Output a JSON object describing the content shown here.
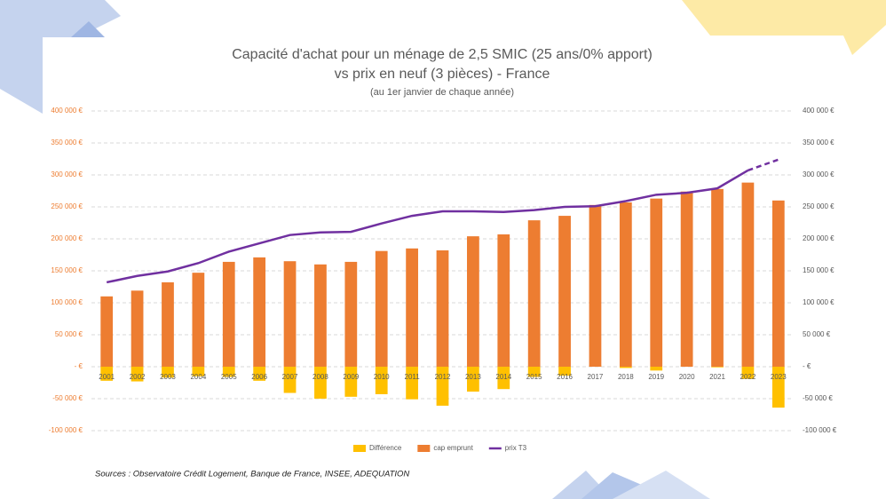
{
  "chart_data": {
    "type": "bar-line",
    "title": [
      "Capacité d'achat pour un ménage de 2,5 SMIC (25 ans/0% apport)",
      "vs prix en neuf (3 pièces) - France"
    ],
    "subtitle": "(au 1er janvier de chaque année)",
    "categories": [
      "2001",
      "2002",
      "2003",
      "2004",
      "2005",
      "2006",
      "2007",
      "2008",
      "2009",
      "2010",
      "2011",
      "2012",
      "2013",
      "2014",
      "2015",
      "2016",
      "2017",
      "2018",
      "2019",
      "2020",
      "2021",
      "2022",
      "2023"
    ],
    "series": [
      {
        "name": "Différence",
        "type": "bar",
        "color": "#FFC000",
        "values": [
          -22000,
          -23000,
          -17000,
          -15000,
          -16000,
          -22000,
          -41000,
          -50000,
          -47000,
          -43000,
          -51000,
          -61000,
          -39000,
          -35000,
          -16000,
          -14000,
          2000,
          -2000,
          -6000,
          2000,
          -1000,
          -19000,
          -64000
        ]
      },
      {
        "name": "cap emprunt",
        "type": "bar",
        "color": "#ED7D31",
        "values": [
          110000,
          119000,
          132000,
          147000,
          164000,
          171000,
          165000,
          160000,
          164000,
          181000,
          185000,
          182000,
          204000,
          207000,
          229000,
          236000,
          253000,
          257000,
          263000,
          274000,
          278000,
          288000,
          260000
        ]
      },
      {
        "name": "prix T3",
        "type": "line",
        "color": "#7030A0",
        "dash_from": 21,
        "values": [
          132000,
          142000,
          149000,
          162000,
          180000,
          193000,
          206000,
          210000,
          211000,
          224000,
          236000,
          243000,
          243000,
          242000,
          245000,
          250000,
          251000,
          259000,
          269000,
          272000,
          279000,
          307000,
          324000
        ]
      }
    ],
    "ylim": [
      -100000,
      400000
    ],
    "yticks": [
      {
        "value": -100000,
        "label": "-100 000 €"
      },
      {
        "value": -50000,
        "label": "-50 000 €"
      },
      {
        "value": 0,
        "label": "-   €"
      },
      {
        "value": 50000,
        "label": "50 000 €"
      },
      {
        "value": 100000,
        "label": "100 000 €"
      },
      {
        "value": 150000,
        "label": "150 000 €"
      },
      {
        "value": 200000,
        "label": "200 000 €"
      },
      {
        "value": 250000,
        "label": "250 000 €"
      },
      {
        "value": 300000,
        "label": "300 000 €"
      },
      {
        "value": 350000,
        "label": "350 000 €"
      },
      {
        "value": 400000,
        "label": "400 000 €"
      }
    ],
    "grid": true,
    "legend": "bottom",
    "source": "Sources : Observatoire Crédit Logement, Banque de France, INSEE, ADEQUATION"
  }
}
